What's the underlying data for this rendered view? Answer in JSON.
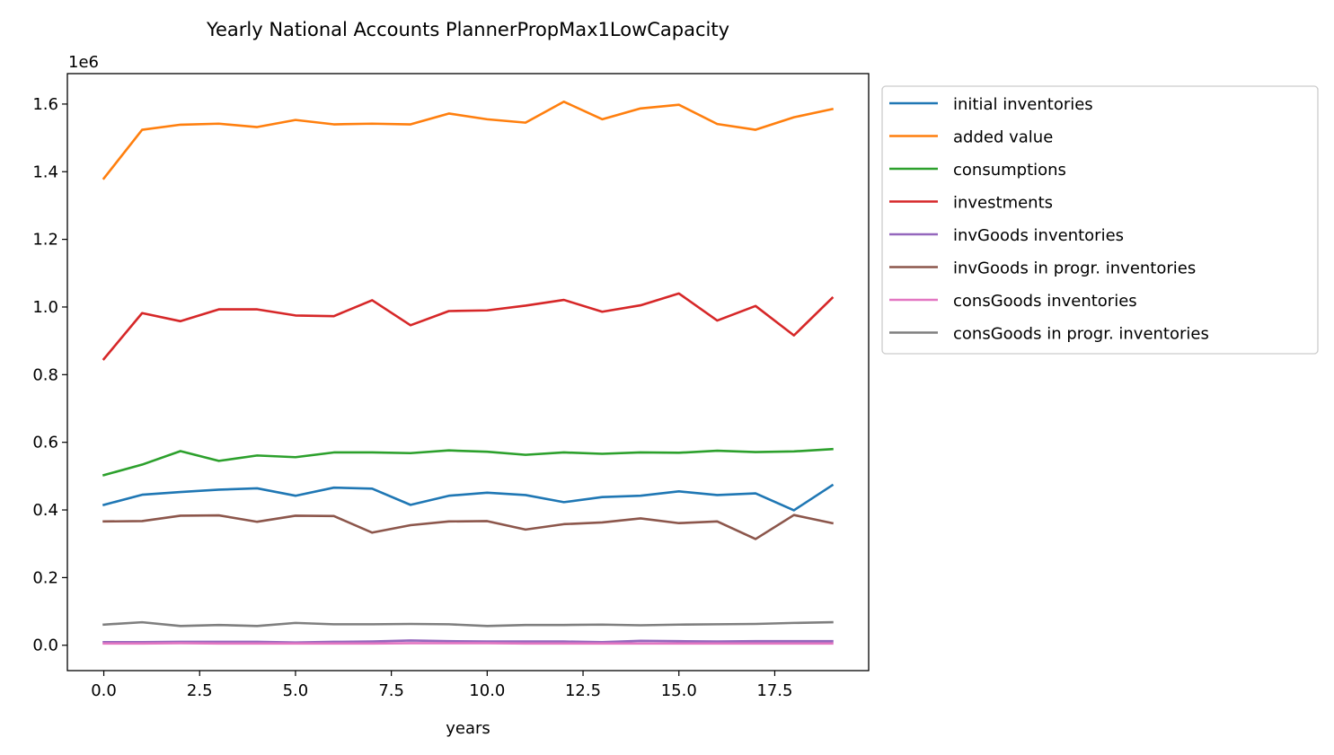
{
  "chart_data": {
    "type": "line",
    "title": "Yearly National Accounts PlannerPropMax1LowCapacity",
    "xlabel": "years",
    "ylabel": "",
    "y_offset_label": "1e6",
    "xlim": [
      -0.95,
      19.95
    ],
    "ylim": [
      -75000,
      1690000
    ],
    "x_ticks": [
      0.0,
      2.5,
      5.0,
      7.5,
      10.0,
      12.5,
      15.0,
      17.5
    ],
    "x_tick_labels": [
      "0.0",
      "2.5",
      "5.0",
      "7.5",
      "10.0",
      "12.5",
      "15.0",
      "17.5"
    ],
    "y_ticks": [
      0,
      200000,
      400000,
      600000,
      800000,
      1000000,
      1200000,
      1400000,
      1600000
    ],
    "y_tick_labels": [
      "0.0",
      "0.2",
      "0.4",
      "0.6",
      "0.8",
      "1.0",
      "1.2",
      "1.4",
      "1.6"
    ],
    "grid": false,
    "legend_position": "outside-right",
    "x": [
      0,
      1,
      2,
      3,
      4,
      5,
      6,
      7,
      8,
      9,
      10,
      11,
      12,
      13,
      14,
      15,
      16,
      17,
      18,
      19
    ],
    "series": [
      {
        "name": "initial inventories",
        "color": "#1f77b4",
        "values": [
          415000,
          445000,
          453000,
          460000,
          464000,
          442000,
          466000,
          463000,
          415000,
          442000,
          451000,
          444000,
          423000,
          438000,
          442000,
          455000,
          444000,
          449000,
          399000,
          473000
        ]
      },
      {
        "name": "added value",
        "color": "#ff7f0e",
        "values": [
          1380000,
          1524000,
          1539000,
          1542000,
          1532000,
          1553000,
          1540000,
          1542000,
          1540000,
          1572000,
          1555000,
          1545000,
          1607000,
          1555000,
          1587000,
          1598000,
          1541000,
          1524000,
          1561000,
          1585000
        ]
      },
      {
        "name": "consumptions",
        "color": "#2ca02c",
        "values": [
          503000,
          534000,
          574000,
          545000,
          561000,
          556000,
          570000,
          570000,
          568000,
          576000,
          572000,
          563000,
          570000,
          566000,
          570000,
          569000,
          575000,
          571000,
          573000,
          580000
        ]
      },
      {
        "name": "investments",
        "color": "#d62728",
        "values": [
          846000,
          982000,
          958000,
          993000,
          993000,
          975000,
          973000,
          1020000,
          946000,
          988000,
          990000,
          1004000,
          1021000,
          986000,
          1005000,
          1040000,
          960000,
          1003000,
          916000,
          1027000
        ]
      },
      {
        "name": "invGoods inventories",
        "color": "#9467bd",
        "values": [
          9000,
          9000,
          10000,
          10000,
          10000,
          8000,
          10000,
          11000,
          14000,
          12000,
          11000,
          11000,
          11000,
          9000,
          13000,
          12000,
          11000,
          12000,
          12000,
          12000
        ]
      },
      {
        "name": "invGoods in progr. inventories",
        "color": "#8c564b",
        "values": [
          366000,
          367000,
          383000,
          384000,
          365000,
          383000,
          382000,
          333000,
          355000,
          366000,
          367000,
          342000,
          358000,
          363000,
          375000,
          361000,
          366000,
          314000,
          385000,
          361000
        ]
      },
      {
        "name": "consGoods inventories",
        "color": "#e377c2",
        "values": [
          5000,
          5000,
          6000,
          5000,
          5000,
          5000,
          5000,
          5000,
          6000,
          6000,
          6000,
          5000,
          5000,
          5000,
          5000,
          5000,
          5000,
          5000,
          5000,
          5000
        ]
      },
      {
        "name": "consGoods in progr. inventories",
        "color": "#7f7f7f",
        "values": [
          61000,
          68000,
          57000,
          60000,
          57000,
          66000,
          62000,
          62000,
          63000,
          62000,
          57000,
          60000,
          60000,
          61000,
          59000,
          61000,
          62000,
          63000,
          66000,
          68000
        ]
      }
    ]
  }
}
